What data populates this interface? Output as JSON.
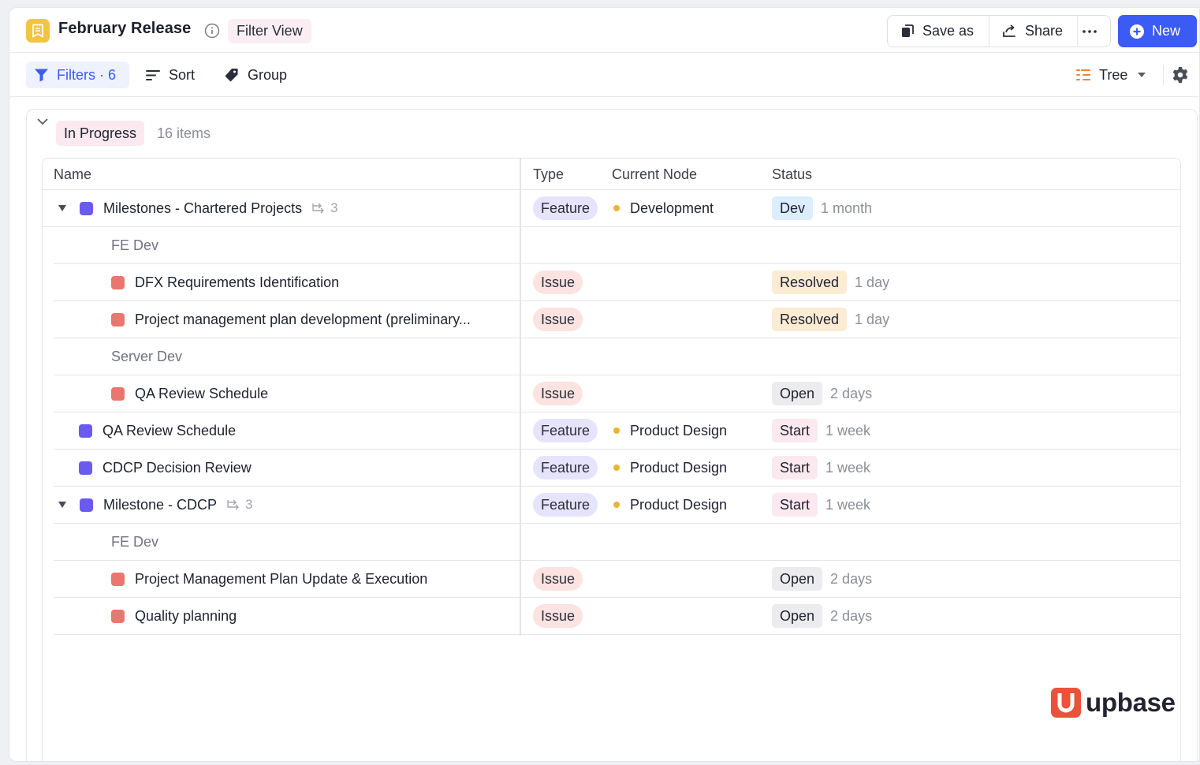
{
  "header": {
    "title": "February Release",
    "view_chip": "Filter View",
    "save_as_label": "Save as",
    "share_label": "Share",
    "more_label": "···",
    "new_label": "New",
    "accent": "#3b5bf5"
  },
  "toolbar": {
    "filters_label": "Filters · 6",
    "sort_label": "Sort",
    "group_label": "Group",
    "view_mode_label": "Tree"
  },
  "group": {
    "name": "In Progress",
    "count": "16 items"
  },
  "table": {
    "columns": {
      "name": "Name",
      "type": "Type",
      "node": "Current Node",
      "status": "Status"
    },
    "rows": [
      {
        "kind": "item",
        "name": "Milestones - Chartered Projects",
        "children": "3",
        "type": "Feature",
        "node": "Development",
        "status": "Dev",
        "duration": "1 month"
      },
      {
        "kind": "subgroup",
        "name": "FE Dev"
      },
      {
        "kind": "item",
        "name": "DFX Requirements Identification",
        "type": "Issue",
        "status": "Resolved",
        "duration": "1 day"
      },
      {
        "kind": "item",
        "name": "Project management plan development (preliminary...",
        "type": "Issue",
        "status": "Resolved",
        "duration": "1 day"
      },
      {
        "kind": "subgroup",
        "name": "Server Dev"
      },
      {
        "kind": "item",
        "name": "QA Review Schedule",
        "type": "Issue",
        "status": "Open",
        "duration": "2 days"
      },
      {
        "kind": "item",
        "name": "QA Review Schedule",
        "type": "Feature",
        "node": "Product Design",
        "status": "Start",
        "duration": "1 week"
      },
      {
        "kind": "item",
        "name": "CDCP Decision Review",
        "type": "Feature",
        "node": "Product Design",
        "status": "Start",
        "duration": "1 week"
      },
      {
        "kind": "item",
        "name": "Milestone - CDCP",
        "children": "3",
        "type": "Feature",
        "node": "Product Design",
        "status": "Start",
        "duration": "1 week"
      },
      {
        "kind": "subgroup",
        "name": "FE Dev"
      },
      {
        "kind": "item",
        "name": "Project Management Plan Update & Execution",
        "type": "Issue",
        "status": "Open",
        "duration": "2 days"
      },
      {
        "kind": "item",
        "name": "Quality planning",
        "type": "Issue",
        "status": "Open",
        "duration": "2 days"
      }
    ]
  },
  "brand": {
    "name": "upbase",
    "color": "#e8533a"
  }
}
